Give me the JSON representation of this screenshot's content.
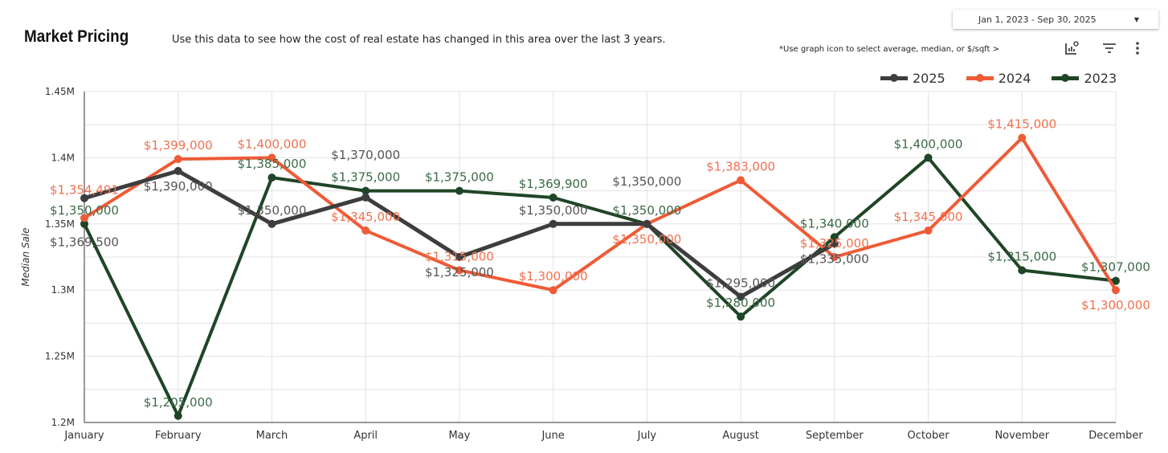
{
  "header": {
    "title": "Market Pricing",
    "subtitle": "Use this data to see how the cost of real estate has changed in this area over the last 3 years.",
    "date_range": "Jan 1, 2023 - Sep 30, 2025",
    "hint": "*Use graph icon to  select average, median, or $/sqft >"
  },
  "icons": [
    "chart-settings-icon",
    "filter-icon",
    "more-vert-icon"
  ],
  "chart_data": {
    "type": "line",
    "xlabel": "",
    "ylabel": "Median Sale",
    "ylim": [
      1200000,
      1450000
    ],
    "y_ticks": [
      "1.2M",
      "1.25M",
      "1.3M",
      "1.35M",
      "1.4M",
      "1.45M"
    ],
    "y_tick_values": [
      1200000,
      1250000,
      1300000,
      1350000,
      1400000,
      1450000
    ],
    "grid": true,
    "legend": "top-right",
    "categories": [
      "January",
      "February",
      "March",
      "April",
      "May",
      "June",
      "July",
      "August",
      "September",
      "October",
      "November",
      "December"
    ],
    "series": [
      {
        "name": "2025",
        "color": "#3d3d3d",
        "label_color": "#555555",
        "values": [
          1369500,
          1390000,
          1350000,
          1370000,
          1325000,
          1350000,
          1350000,
          1295000,
          1335000,
          null,
          null,
          null
        ],
        "labels": [
          "$1,369,500",
          "$1,390,000",
          "$1,350,000",
          "$1,370,000",
          "$1,325,000",
          "$1,350,000",
          "$1,350,000",
          "$1,295,000",
          "$1,335,000",
          null,
          null,
          null
        ]
      },
      {
        "name": "2024",
        "color": "#ee5b37",
        "label_color": "#f0704e",
        "values": [
          1354491,
          1399000,
          1400000,
          1345000,
          1315000,
          1300000,
          1350000,
          1383000,
          1325000,
          1345000,
          1415000,
          1300000
        ],
        "labels": [
          "$1,354,491",
          "$1,399,000",
          "$1,400,000",
          "$1,345,000",
          "$1,315,000",
          "$1,300,000",
          "$1,350,000",
          "$1,383,000",
          "$1,325,000",
          "$1,345,000",
          "$1,415,000",
          "$1,300,000"
        ]
      },
      {
        "name": "2023",
        "color": "#1f4526",
        "label_color": "#3c6a45",
        "values": [
          1350000,
          1205000,
          1385000,
          1375000,
          1375000,
          1369900,
          1350000,
          1280000,
          1340000,
          1400000,
          1315000,
          1307000
        ],
        "labels": [
          "$1,350,000",
          "$1,205,000",
          "$1,385,000",
          "$1,375,000",
          "$1,375,000",
          "$1,369,900",
          "$1,350,000",
          "$1,280,000",
          "$1,340,000",
          "$1,400,000",
          "$1,315,000",
          "$1,307,000"
        ]
      }
    ]
  }
}
